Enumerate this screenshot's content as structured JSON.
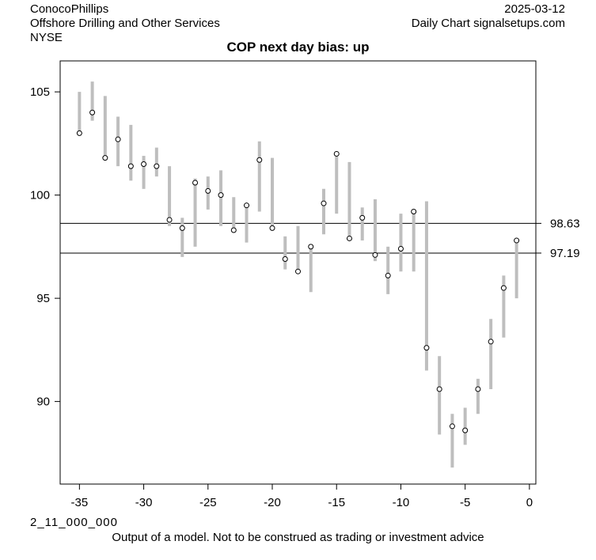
{
  "header": {
    "company": "ConocoPhillips",
    "industry": "Offshore Drilling and Other Services",
    "exchange": "NYSE",
    "date": "2025-03-12",
    "source": "Daily Chart signalsetups.com"
  },
  "footer": {
    "code": "2_11_000_000",
    "disclaimer": "Output of a model. Not to be construed as trading or investment advice"
  },
  "chart_data": {
    "type": "scatter",
    "title": "COP next day bias: up",
    "xlim": [
      -36.5,
      0.5
    ],
    "ylim": [
      86.0,
      106.5
    ],
    "x_ticks": [
      -35,
      -30,
      -25,
      -20,
      -15,
      -10,
      -5,
      0
    ],
    "y_ticks": [
      90,
      95,
      100,
      105
    ],
    "grid": false,
    "bar_color": "#bebebe",
    "point_color": "#000000",
    "hlines": [
      {
        "value": 98.63,
        "label": "98.63"
      },
      {
        "value": 97.19,
        "label": "97.19"
      }
    ],
    "points": [
      {
        "x": -35,
        "close": 103.0,
        "low": 102.9,
        "high": 105.0
      },
      {
        "x": -34,
        "close": 104.0,
        "low": 103.6,
        "high": 105.5
      },
      {
        "x": -33,
        "close": 101.8,
        "low": 101.8,
        "high": 104.8
      },
      {
        "x": -32,
        "close": 102.7,
        "low": 101.4,
        "high": 103.8
      },
      {
        "x": -31,
        "close": 101.4,
        "low": 100.7,
        "high": 103.4
      },
      {
        "x": -30,
        "close": 101.5,
        "low": 100.3,
        "high": 101.9
      },
      {
        "x": -29,
        "close": 101.4,
        "low": 100.9,
        "high": 102.3
      },
      {
        "x": -28,
        "close": 98.8,
        "low": 98.5,
        "high": 101.4
      },
      {
        "x": -27,
        "close": 98.4,
        "low": 97.0,
        "high": 98.9
      },
      {
        "x": -26,
        "close": 100.6,
        "low": 97.5,
        "high": 100.8
      },
      {
        "x": -25,
        "close": 100.2,
        "low": 99.3,
        "high": 100.9
      },
      {
        "x": -24,
        "close": 100.0,
        "low": 98.5,
        "high": 101.2
      },
      {
        "x": -23,
        "close": 98.3,
        "low": 98.3,
        "high": 99.9
      },
      {
        "x": -22,
        "close": 99.5,
        "low": 97.7,
        "high": 99.5
      },
      {
        "x": -21,
        "close": 101.7,
        "low": 99.2,
        "high": 102.6
      },
      {
        "x": -20,
        "close": 98.4,
        "low": 98.4,
        "high": 101.8
      },
      {
        "x": -19,
        "close": 96.9,
        "low": 96.4,
        "high": 98.0
      },
      {
        "x": -18,
        "close": 96.3,
        "low": 96.2,
        "high": 98.5
      },
      {
        "x": -17,
        "close": 97.5,
        "low": 95.3,
        "high": 97.5
      },
      {
        "x": -16,
        "close": 99.6,
        "low": 98.1,
        "high": 100.3
      },
      {
        "x": -15,
        "close": 102.0,
        "low": 99.1,
        "high": 102.0
      },
      {
        "x": -14,
        "close": 97.9,
        "low": 97.9,
        "high": 101.6
      },
      {
        "x": -13,
        "close": 98.9,
        "low": 97.8,
        "high": 99.4
      },
      {
        "x": -12,
        "close": 97.1,
        "low": 96.8,
        "high": 99.8
      },
      {
        "x": -11,
        "close": 96.1,
        "low": 95.2,
        "high": 97.5
      },
      {
        "x": -10,
        "close": 97.4,
        "low": 96.3,
        "high": 99.1
      },
      {
        "x": -9,
        "close": 99.2,
        "low": 96.3,
        "high": 99.2
      },
      {
        "x": -8,
        "close": 92.6,
        "low": 91.5,
        "high": 99.7
      },
      {
        "x": -7,
        "close": 90.6,
        "low": 88.4,
        "high": 92.2
      },
      {
        "x": -6,
        "close": 88.8,
        "low": 86.8,
        "high": 89.4
      },
      {
        "x": -5,
        "close": 88.6,
        "low": 87.9,
        "high": 89.7
      },
      {
        "x": -4,
        "close": 90.6,
        "low": 89.4,
        "high": 91.1
      },
      {
        "x": -3,
        "close": 92.9,
        "low": 90.6,
        "high": 94.0
      },
      {
        "x": -2,
        "close": 95.5,
        "low": 93.1,
        "high": 96.1
      },
      {
        "x": -1,
        "close": 97.8,
        "low": 95.0,
        "high": 97.8
      }
    ]
  }
}
